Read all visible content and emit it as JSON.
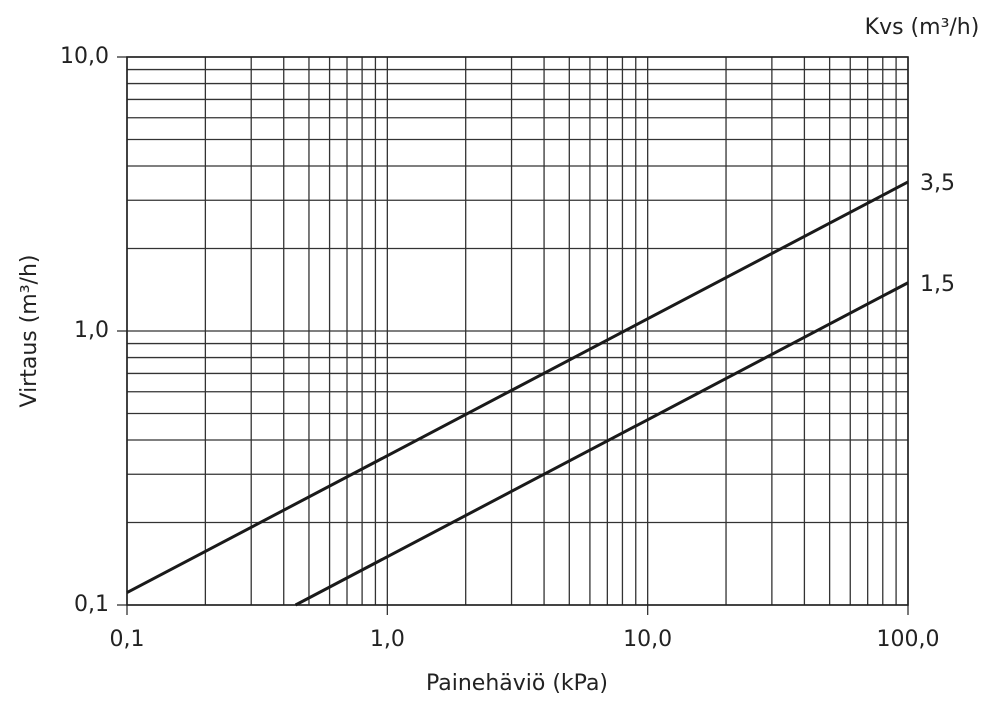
{
  "chart_data": {
    "type": "line",
    "x_label": "Painehäviö (kPa)",
    "y_label": "Virtaus (m³/h)",
    "legend_title": "Kvs (m³/h)",
    "xscale": "log",
    "yscale": "log",
    "grid": true,
    "minor_grid": true,
    "xlim": [
      0.1,
      100
    ],
    "ylim": [
      0.1,
      10
    ],
    "xticks": [
      {
        "value": 0.1,
        "label": "0,1"
      },
      {
        "value": 1,
        "label": "1,0"
      },
      {
        "value": 10,
        "label": "10,0"
      },
      {
        "value": 100,
        "label": "100,0"
      }
    ],
    "yticks": [
      {
        "value": 0.1,
        "label": "0,1"
      },
      {
        "value": 1,
        "label": "1,0"
      },
      {
        "value": 10,
        "label": "10,0"
      }
    ],
    "series": [
      {
        "name": "3,5",
        "color": "#1a1a1a",
        "x": [
          0.1,
          100
        ],
        "values": [
          0.111,
          3.5
        ]
      },
      {
        "name": "1,5",
        "color": "#1a1a1a",
        "x": [
          0.444,
          100
        ],
        "values": [
          0.1,
          1.5
        ]
      }
    ]
  }
}
